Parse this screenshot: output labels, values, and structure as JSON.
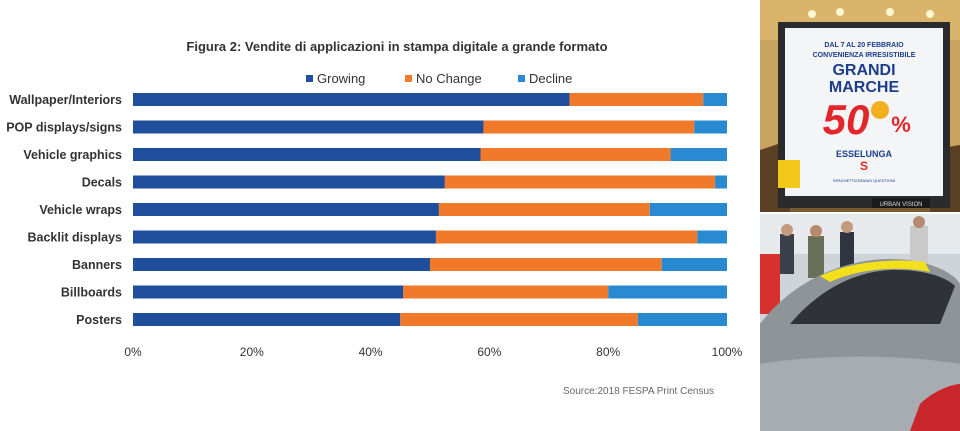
{
  "chart_data": {
    "type": "bar",
    "orientation": "horizontal",
    "stacked": true,
    "title": "Figura 2: Vendite di applicazioni in stampa digitale a grande formato",
    "categories": [
      "Wallpaper/Interiors",
      "POP displays/signs",
      "Vehicle graphics",
      "Decals",
      "Vehicle wraps",
      "Backlit displays",
      "Banners",
      "Billboards",
      "Posters"
    ],
    "series": [
      {
        "name": "Growing",
        "color": "#1f4e9c",
        "values": [
          73.5,
          59,
          58.5,
          52.5,
          51.5,
          51,
          50,
          45.5,
          45
        ]
      },
      {
        "name": "No Change",
        "color": "#f07a2a",
        "values": [
          22.5,
          35.5,
          32,
          45.5,
          35.5,
          44,
          39,
          34.5,
          40
        ]
      },
      {
        "name": "Decline",
        "color": "#2a8ad1",
        "values": [
          4,
          5.5,
          9.5,
          2,
          13,
          5,
          11,
          20,
          15
        ]
      }
    ],
    "xlim": [
      0,
      100
    ],
    "xticks": [
      "0%",
      "20%",
      "40%",
      "60%",
      "80%",
      "100%"
    ],
    "legend_position": "top",
    "grid": false
  },
  "source": "Source:2018 FESPA Print Census",
  "billboard": {
    "date": "DAL 7 AL 20 FEBBRAIO",
    "tagline": "CONVENIENZA IRRESISTIBILE",
    "headline1": "GRANDI",
    "headline2": "MARCHE",
    "discount": "50",
    "percent": "%",
    "brand": "ESSELUNGA",
    "brand_mark": "S",
    "footer": "SPAGHETTI/GRANDI QUESTIONI",
    "operator": "URBAN VISION"
  }
}
